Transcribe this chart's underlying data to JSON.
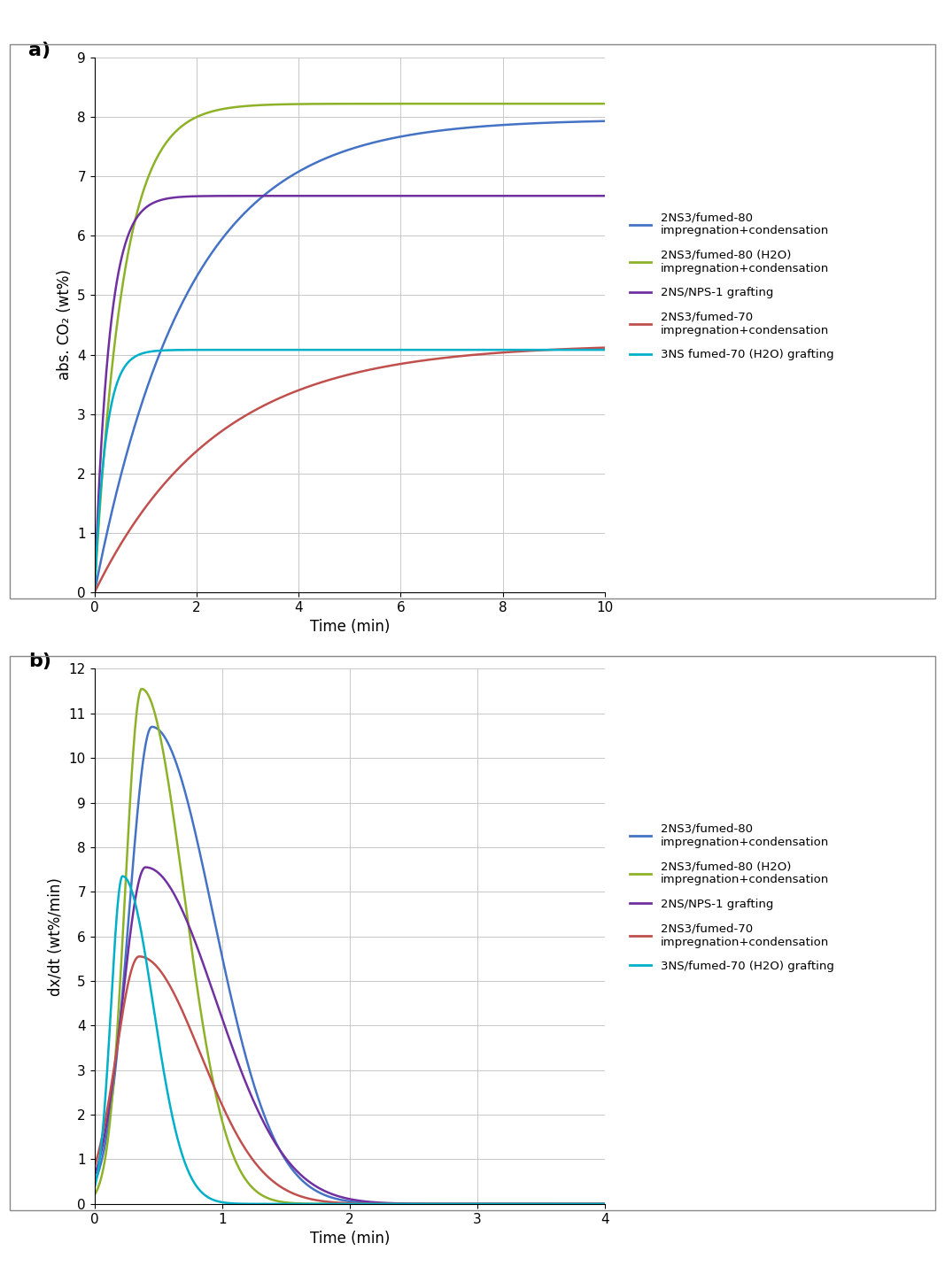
{
  "colors": [
    "#4472C4",
    "#8DB228",
    "#7030A0",
    "#C0504D",
    "#00B0C8"
  ],
  "panel_a": {
    "xlabel": "Time (min)",
    "ylabel": "abs. CO₂ (wt%)",
    "xlim": [
      0,
      10
    ],
    "ylim": [
      0,
      9
    ],
    "xticks": [
      0,
      2,
      4,
      6,
      8,
      10
    ],
    "yticks": [
      0,
      1,
      2,
      3,
      4,
      5,
      6,
      7,
      8,
      9
    ],
    "series": [
      {
        "sat": 7.96,
        "k": 0.55
      },
      {
        "sat": 8.22,
        "k": 1.8
      },
      {
        "sat": 6.67,
        "k": 3.5
      },
      {
        "sat": 4.18,
        "k": 0.42
      },
      {
        "sat": 4.08,
        "k": 4.5
      }
    ]
  },
  "panel_b": {
    "xlabel": "Time (min)",
    "ylabel": "dx/dt (wt%/min)",
    "xlim": [
      0,
      4
    ],
    "ylim": [
      0,
      12
    ],
    "xticks": [
      0,
      1,
      2,
      3,
      4
    ],
    "yticks": [
      0,
      1,
      2,
      3,
      4,
      5,
      6,
      7,
      8,
      9,
      10,
      11,
      12
    ],
    "series": [
      {
        "peak": 10.7,
        "tp": 0.45,
        "sl": 0.18,
        "sr": 0.48
      },
      {
        "peak": 11.55,
        "tp": 0.37,
        "sl": 0.13,
        "sr": 0.33
      },
      {
        "peak": 7.55,
        "tp": 0.4,
        "sl": 0.18,
        "sr": 0.55
      },
      {
        "peak": 5.55,
        "tp": 0.35,
        "sl": 0.18,
        "sr": 0.48
      },
      {
        "peak": 7.35,
        "tp": 0.22,
        "sl": 0.09,
        "sr": 0.24
      }
    ]
  },
  "legend_labels_a": [
    "2NS3/fumed-80\nimpregnation+condensation",
    "2NS3/fumed-80 (H2O)\nimpregnation+condensation",
    "2NS/NPS-1 grafting",
    "2NS3/fumed-70\nimpregnation+condensation",
    "3NS fumed-70 (H2O) grafting"
  ],
  "legend_labels_b": [
    "2NS3/fumed-80\nimpregnation+condensation",
    "2NS3/fumed-80 (H2O)\nimpregnation+condensation",
    "2NS/NPS-1 grafting",
    "2NS3/fumed-70\nimpregnation+condensation",
    "3NS/fumed-70 (H2O) grafting"
  ]
}
